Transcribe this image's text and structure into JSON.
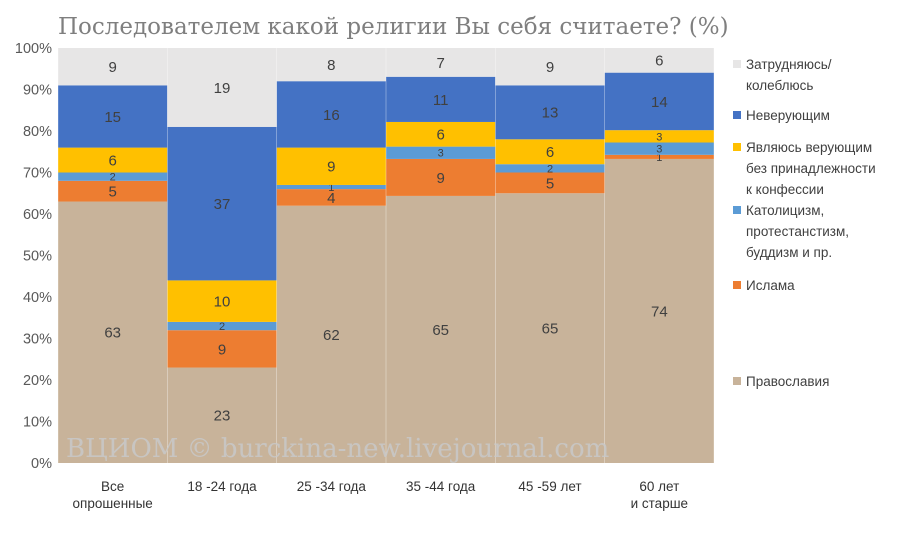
{
  "chart_data": {
    "type": "bar",
    "stacked": true,
    "title": "Последователем какой религии Вы себя считаете? (%)",
    "categories": [
      "Все опрошенные",
      "18 -24 года",
      "25 -34 года",
      "35 -44 года",
      "45 -59 лет",
      "60 лет и старше"
    ],
    "ylim": [
      0,
      100
    ],
    "y_ticks": [
      "0%",
      "10%",
      "20%",
      "30%",
      "40%",
      "50%",
      "60%",
      "70%",
      "80%",
      "90%",
      "100%"
    ],
    "grid": false,
    "legend_placement": "right",
    "watermark": "ВЦИОМ © burckina-new.livejournal.com",
    "series": [
      {
        "name": "Православия",
        "color": "#c8b39a",
        "values": [
          63,
          23,
          62,
          65,
          65,
          74
        ]
      },
      {
        "name": "Ислама",
        "color": "#ed7d31",
        "values": [
          5,
          9,
          4,
          9,
          5,
          1
        ]
      },
      {
        "name": "Католицизм, протестанстизм, буддизм и пр.",
        "color": "#5b9bd5",
        "values": [
          2,
          2,
          1,
          3,
          2,
          3
        ]
      },
      {
        "name": "Являюсь верующим без принадлежности к конфессии",
        "color": "#ffc000",
        "values": [
          6,
          10,
          9,
          6,
          6,
          3
        ]
      },
      {
        "name": "Неверующим",
        "color": "#4472c4",
        "values": [
          15,
          37,
          16,
          11,
          13,
          14
        ]
      },
      {
        "name": "Затрудняюсь/ колеблюсь",
        "color": "#e7e6e6",
        "values": [
          9,
          19,
          8,
          7,
          9,
          6
        ]
      }
    ]
  }
}
